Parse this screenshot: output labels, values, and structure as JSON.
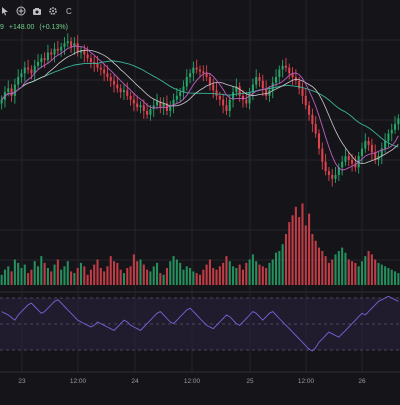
{
  "toolbar": {
    "icons": [
      "cursor-icon",
      "add-icon",
      "camera-icon",
      "settings-icon"
    ],
    "symbol_suffix": "C"
  },
  "quote": {
    "last_fragment": "9",
    "change": "+148.00",
    "change_pct": "(+0.13%)"
  },
  "colors": {
    "background": "#151519",
    "grid": "#23232a",
    "up": "#26a66a",
    "down": "#e0434f",
    "ma_fast": "#c15cc4",
    "ma_mid": "#c9c9cc",
    "ma_slow": "#3bb39a",
    "rsi_line": "#7b61d6",
    "rsi_band": "#2a2340"
  },
  "x_axis": {
    "labels": [
      "23",
      "12:00",
      "24",
      "12:00",
      "25",
      "12:00",
      "26"
    ]
  },
  "chart_data": [
    {
      "type": "candlestick",
      "note_units": "price index (unlabeled axis)",
      "series": [
        {
          "name": "",
          "values": [
            58,
            62,
            64,
            60,
            66,
            70,
            72,
            75,
            74,
            72,
            76,
            78,
            80,
            79,
            83,
            82,
            85,
            84,
            86,
            88,
            89,
            86,
            88,
            83,
            84,
            82,
            80,
            78,
            77,
            75,
            74,
            72,
            70,
            68,
            66,
            64,
            62,
            63,
            60,
            58,
            56,
            54,
            55,
            52,
            50,
            53,
            55,
            57,
            54,
            56,
            52,
            55,
            58,
            60,
            62,
            65,
            70,
            72,
            75,
            74,
            73,
            72,
            70,
            66,
            63,
            60,
            58,
            55,
            52,
            58,
            62,
            65,
            60,
            58,
            56,
            62,
            66,
            70,
            68,
            64,
            60,
            63,
            67,
            70,
            74,
            76,
            75,
            72,
            70,
            68,
            64,
            60,
            55,
            50,
            45,
            40,
            32,
            25,
            20,
            18,
            16,
            18,
            22,
            25,
            28,
            26,
            24,
            22,
            28,
            32,
            36,
            34,
            30,
            26,
            28,
            32,
            36,
            40,
            42,
            45,
            48
          ]
        }
      ]
    },
    {
      "type": "bar",
      "note": "volume",
      "values": [
        12,
        18,
        22,
        16,
        30,
        26,
        20,
        24,
        14,
        18,
        28,
        22,
        34,
        26,
        20,
        16,
        24,
        30,
        18,
        22,
        28,
        16,
        14,
        20,
        26,
        22,
        12,
        18,
        24,
        30,
        20,
        16,
        22,
        34,
        28,
        26,
        18,
        14,
        20,
        22,
        36,
        28,
        30,
        24,
        18,
        16,
        22,
        26,
        14,
        12,
        20,
        28,
        34,
        30,
        26,
        18,
        22,
        20,
        16,
        14,
        12,
        18,
        24,
        30,
        20,
        18,
        22,
        26,
        34,
        28,
        22,
        20,
        24,
        18,
        26,
        30,
        36,
        28,
        24,
        22,
        20,
        26,
        30,
        38,
        40,
        48,
        60,
        74,
        82,
        92,
        80,
        96,
        70,
        84,
        60,
        52,
        44,
        40,
        34,
        26,
        30,
        36,
        40,
        44,
        38,
        30,
        28,
        26,
        22,
        28,
        34,
        40,
        36,
        30,
        26,
        24,
        22,
        20,
        18,
        16,
        14
      ]
    },
    {
      "type": "line",
      "note": "oscillator",
      "values": [
        62,
        60,
        58,
        55,
        52,
        58,
        62,
        66,
        70,
        72,
        68,
        64,
        60,
        62,
        66,
        70,
        74,
        76,
        72,
        68,
        64,
        60,
        56,
        52,
        50,
        48,
        46,
        44,
        46,
        50,
        48,
        46,
        44,
        42,
        40,
        44,
        48,
        52,
        50,
        46,
        44,
        42,
        40,
        44,
        48,
        52,
        56,
        60,
        62,
        58,
        54,
        50,
        48,
        52,
        56,
        60,
        64,
        66,
        62,
        58,
        54,
        50,
        46,
        44,
        42,
        46,
        50,
        54,
        58,
        56,
        52,
        48,
        46,
        50,
        54,
        58,
        62,
        60,
        56,
        52,
        56,
        60,
        62,
        58,
        54,
        50,
        46,
        42,
        38,
        34,
        30,
        26,
        22,
        18,
        16,
        20,
        26,
        30,
        34,
        38,
        36,
        34,
        32,
        36,
        40,
        44,
        48,
        52,
        56,
        60,
        58,
        62,
        66,
        70,
        74,
        76,
        78,
        80,
        78,
        76,
        74
      ]
    }
  ]
}
